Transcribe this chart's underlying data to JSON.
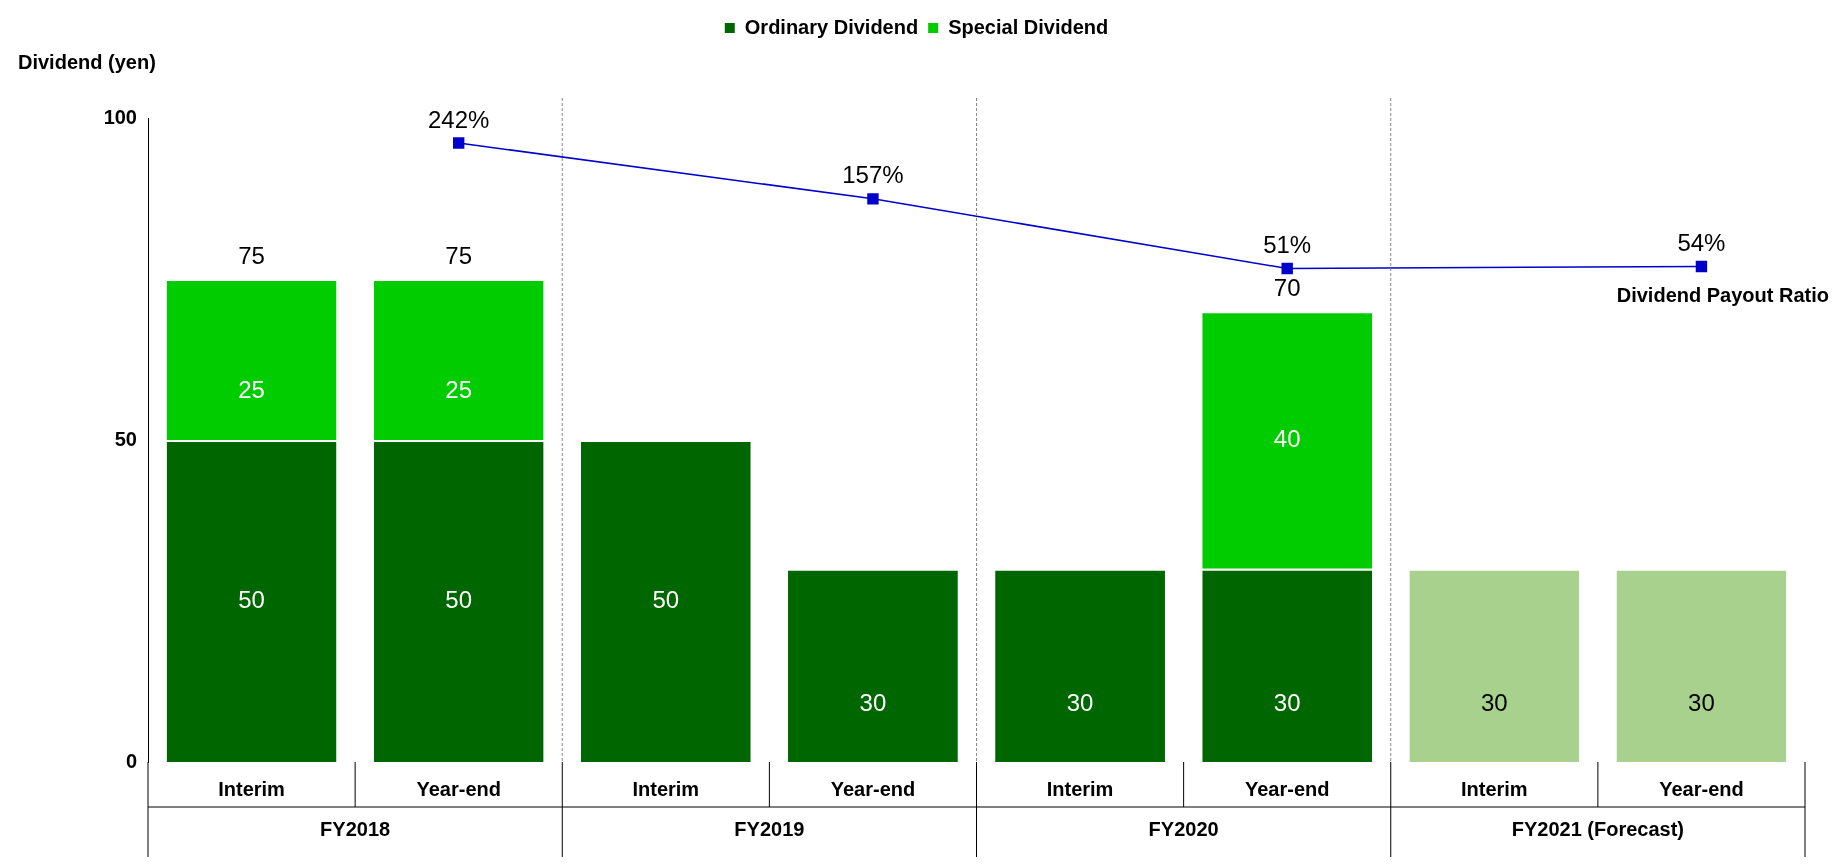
{
  "chart_data": {
    "type": "bar",
    "stacked": true,
    "ylabel": "Dividend (yen)",
    "categories": [
      "Interim",
      "Year-end",
      "Interim",
      "Year-end",
      "Interim",
      "Year-end",
      "Interim",
      "Year-end"
    ],
    "annotations": [
      "FY2018",
      "FY2019",
      "FY2020",
      "FY2021 (Forecast)"
    ],
    "series": [
      {
        "name": "Ordinary Dividend",
        "color": "#006600",
        "colors": [
          "#006600",
          "#006600",
          "#006600",
          "#006600",
          "#006600",
          "#006600",
          "#a9d18e",
          "#a9d18e"
        ],
        "values": [
          50,
          50,
          50,
          30,
          30,
          30,
          30,
          30
        ],
        "value_labels": [
          "50",
          "50",
          "50",
          "30",
          "30",
          "30",
          "30",
          "30"
        ]
      },
      {
        "name": "Special Dividend",
        "color": "#00cc00",
        "values": [
          25,
          25,
          null,
          null,
          null,
          40,
          null,
          null
        ],
        "value_labels": [
          "25",
          "25",
          null,
          null,
          null,
          "40",
          null,
          null
        ]
      },
      {
        "name": "Dividend Payout Ratio",
        "type": "line",
        "axis": "y2",
        "color": "#0000cc",
        "marker": "square",
        "values": [
          null,
          242,
          null,
          157,
          null,
          51,
          null,
          54
        ],
        "value_labels": [
          null,
          "242%",
          null,
          "157%",
          null,
          "51%",
          null,
          "54%"
        ]
      }
    ],
    "totals": [
      "75",
      "75",
      null,
      null,
      null,
      "70",
      null,
      null
    ],
    "ylim": [
      0,
      100
    ],
    "yticks": [
      0,
      50,
      100
    ],
    "y2lim": [
      -700,
      280
    ],
    "grid": false,
    "legend": "top"
  }
}
